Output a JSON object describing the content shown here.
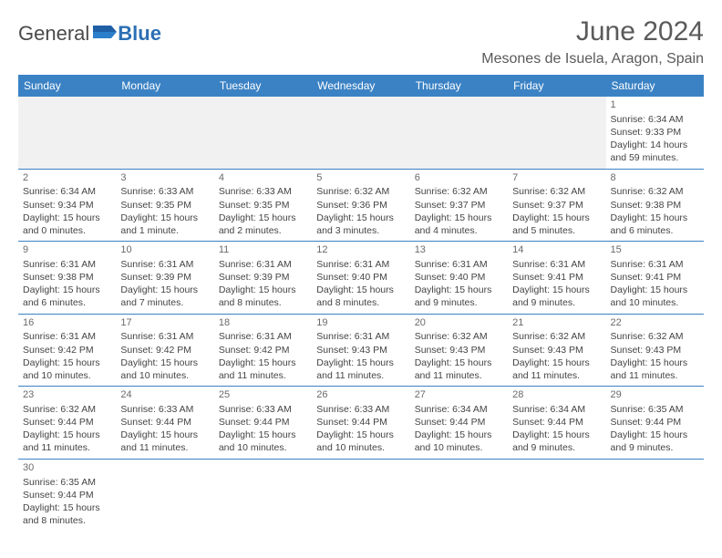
{
  "logo": {
    "text1": "General",
    "text2": "Blue"
  },
  "title": "June 2024",
  "location": "Mesones de Isuela, Aragon, Spain",
  "colors": {
    "header_bg": "#3b82c4",
    "header_fg": "#ffffff",
    "border": "#3b82c4",
    "blank_bg": "#f1f1f1",
    "title_color": "#5a5a5a",
    "text_color": "#333333"
  },
  "day_headers": [
    "Sunday",
    "Monday",
    "Tuesday",
    "Wednesday",
    "Thursday",
    "Friday",
    "Saturday"
  ],
  "weeks": [
    [
      null,
      null,
      null,
      null,
      null,
      null,
      {
        "n": "1",
        "sr": "Sunrise: 6:34 AM",
        "ss": "Sunset: 9:33 PM",
        "d1": "Daylight: 14 hours",
        "d2": "and 59 minutes."
      }
    ],
    [
      {
        "n": "2",
        "sr": "Sunrise: 6:34 AM",
        "ss": "Sunset: 9:34 PM",
        "d1": "Daylight: 15 hours",
        "d2": "and 0 minutes."
      },
      {
        "n": "3",
        "sr": "Sunrise: 6:33 AM",
        "ss": "Sunset: 9:35 PM",
        "d1": "Daylight: 15 hours",
        "d2": "and 1 minute."
      },
      {
        "n": "4",
        "sr": "Sunrise: 6:33 AM",
        "ss": "Sunset: 9:35 PM",
        "d1": "Daylight: 15 hours",
        "d2": "and 2 minutes."
      },
      {
        "n": "5",
        "sr": "Sunrise: 6:32 AM",
        "ss": "Sunset: 9:36 PM",
        "d1": "Daylight: 15 hours",
        "d2": "and 3 minutes."
      },
      {
        "n": "6",
        "sr": "Sunrise: 6:32 AM",
        "ss": "Sunset: 9:37 PM",
        "d1": "Daylight: 15 hours",
        "d2": "and 4 minutes."
      },
      {
        "n": "7",
        "sr": "Sunrise: 6:32 AM",
        "ss": "Sunset: 9:37 PM",
        "d1": "Daylight: 15 hours",
        "d2": "and 5 minutes."
      },
      {
        "n": "8",
        "sr": "Sunrise: 6:32 AM",
        "ss": "Sunset: 9:38 PM",
        "d1": "Daylight: 15 hours",
        "d2": "and 6 minutes."
      }
    ],
    [
      {
        "n": "9",
        "sr": "Sunrise: 6:31 AM",
        "ss": "Sunset: 9:38 PM",
        "d1": "Daylight: 15 hours",
        "d2": "and 6 minutes."
      },
      {
        "n": "10",
        "sr": "Sunrise: 6:31 AM",
        "ss": "Sunset: 9:39 PM",
        "d1": "Daylight: 15 hours",
        "d2": "and 7 minutes."
      },
      {
        "n": "11",
        "sr": "Sunrise: 6:31 AM",
        "ss": "Sunset: 9:39 PM",
        "d1": "Daylight: 15 hours",
        "d2": "and 8 minutes."
      },
      {
        "n": "12",
        "sr": "Sunrise: 6:31 AM",
        "ss": "Sunset: 9:40 PM",
        "d1": "Daylight: 15 hours",
        "d2": "and 8 minutes."
      },
      {
        "n": "13",
        "sr": "Sunrise: 6:31 AM",
        "ss": "Sunset: 9:40 PM",
        "d1": "Daylight: 15 hours",
        "d2": "and 9 minutes."
      },
      {
        "n": "14",
        "sr": "Sunrise: 6:31 AM",
        "ss": "Sunset: 9:41 PM",
        "d1": "Daylight: 15 hours",
        "d2": "and 9 minutes."
      },
      {
        "n": "15",
        "sr": "Sunrise: 6:31 AM",
        "ss": "Sunset: 9:41 PM",
        "d1": "Daylight: 15 hours",
        "d2": "and 10 minutes."
      }
    ],
    [
      {
        "n": "16",
        "sr": "Sunrise: 6:31 AM",
        "ss": "Sunset: 9:42 PM",
        "d1": "Daylight: 15 hours",
        "d2": "and 10 minutes."
      },
      {
        "n": "17",
        "sr": "Sunrise: 6:31 AM",
        "ss": "Sunset: 9:42 PM",
        "d1": "Daylight: 15 hours",
        "d2": "and 10 minutes."
      },
      {
        "n": "18",
        "sr": "Sunrise: 6:31 AM",
        "ss": "Sunset: 9:42 PM",
        "d1": "Daylight: 15 hours",
        "d2": "and 11 minutes."
      },
      {
        "n": "19",
        "sr": "Sunrise: 6:31 AM",
        "ss": "Sunset: 9:43 PM",
        "d1": "Daylight: 15 hours",
        "d2": "and 11 minutes."
      },
      {
        "n": "20",
        "sr": "Sunrise: 6:32 AM",
        "ss": "Sunset: 9:43 PM",
        "d1": "Daylight: 15 hours",
        "d2": "and 11 minutes."
      },
      {
        "n": "21",
        "sr": "Sunrise: 6:32 AM",
        "ss": "Sunset: 9:43 PM",
        "d1": "Daylight: 15 hours",
        "d2": "and 11 minutes."
      },
      {
        "n": "22",
        "sr": "Sunrise: 6:32 AM",
        "ss": "Sunset: 9:43 PM",
        "d1": "Daylight: 15 hours",
        "d2": "and 11 minutes."
      }
    ],
    [
      {
        "n": "23",
        "sr": "Sunrise: 6:32 AM",
        "ss": "Sunset: 9:44 PM",
        "d1": "Daylight: 15 hours",
        "d2": "and 11 minutes."
      },
      {
        "n": "24",
        "sr": "Sunrise: 6:33 AM",
        "ss": "Sunset: 9:44 PM",
        "d1": "Daylight: 15 hours",
        "d2": "and 11 minutes."
      },
      {
        "n": "25",
        "sr": "Sunrise: 6:33 AM",
        "ss": "Sunset: 9:44 PM",
        "d1": "Daylight: 15 hours",
        "d2": "and 10 minutes."
      },
      {
        "n": "26",
        "sr": "Sunrise: 6:33 AM",
        "ss": "Sunset: 9:44 PM",
        "d1": "Daylight: 15 hours",
        "d2": "and 10 minutes."
      },
      {
        "n": "27",
        "sr": "Sunrise: 6:34 AM",
        "ss": "Sunset: 9:44 PM",
        "d1": "Daylight: 15 hours",
        "d2": "and 10 minutes."
      },
      {
        "n": "28",
        "sr": "Sunrise: 6:34 AM",
        "ss": "Sunset: 9:44 PM",
        "d1": "Daylight: 15 hours",
        "d2": "and 9 minutes."
      },
      {
        "n": "29",
        "sr": "Sunrise: 6:35 AM",
        "ss": "Sunset: 9:44 PM",
        "d1": "Daylight: 15 hours",
        "d2": "and 9 minutes."
      }
    ],
    [
      {
        "n": "30",
        "sr": "Sunrise: 6:35 AM",
        "ss": "Sunset: 9:44 PM",
        "d1": "Daylight: 15 hours",
        "d2": "and 8 minutes."
      },
      null,
      null,
      null,
      null,
      null,
      null
    ]
  ]
}
